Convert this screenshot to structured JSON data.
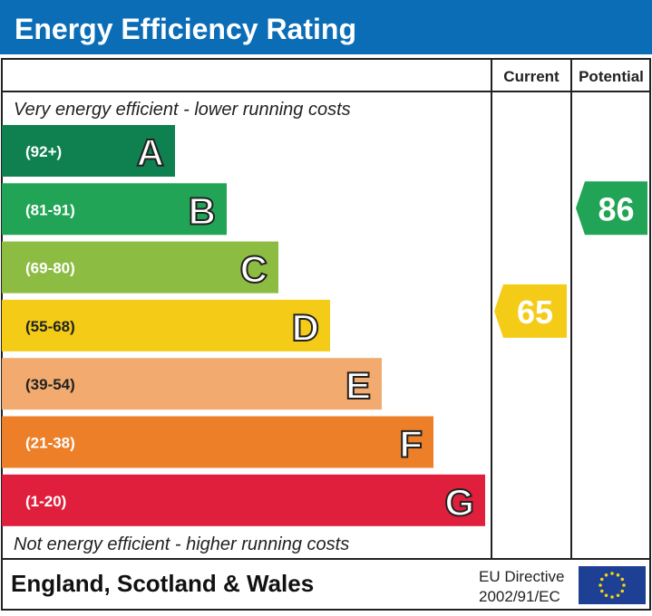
{
  "title": "Energy Efficiency Rating",
  "colors": {
    "title_bg": "#0b6db6",
    "eu_flag": "#1d3f94",
    "eu_stars": "#f6d20f"
  },
  "chart_data": {
    "type": "bar",
    "title": "Energy Efficiency Rating",
    "top_note": "Very energy efficient - lower running costs",
    "bottom_note": "Not energy efficient - higher running costs",
    "column_headers": {
      "current": "Current",
      "potential": "Potential"
    },
    "bands": [
      {
        "letter": "A",
        "range": "(92+)",
        "color": "#0f8050"
      },
      {
        "letter": "B",
        "range": "(81-91)",
        "color": "#21a455"
      },
      {
        "letter": "C",
        "range": "(69-80)",
        "color": "#8dbc42"
      },
      {
        "letter": "D",
        "range": "(55-68)",
        "color": "#f4cc17"
      },
      {
        "letter": "E",
        "range": "(39-54)",
        "color": "#f2aa6e"
      },
      {
        "letter": "F",
        "range": "(21-38)",
        "color": "#ec7f28"
      },
      {
        "letter": "G",
        "range": "(1-20)",
        "color": "#e01f3d"
      }
    ],
    "current": {
      "value": 65,
      "band": "D",
      "color": "#f4cc17"
    },
    "potential": {
      "value": 86,
      "band": "B",
      "color": "#21a455"
    }
  },
  "footer": {
    "region": "England, Scotland & Wales",
    "directive_line1": "EU Directive",
    "directive_line2": "2002/91/EC"
  }
}
